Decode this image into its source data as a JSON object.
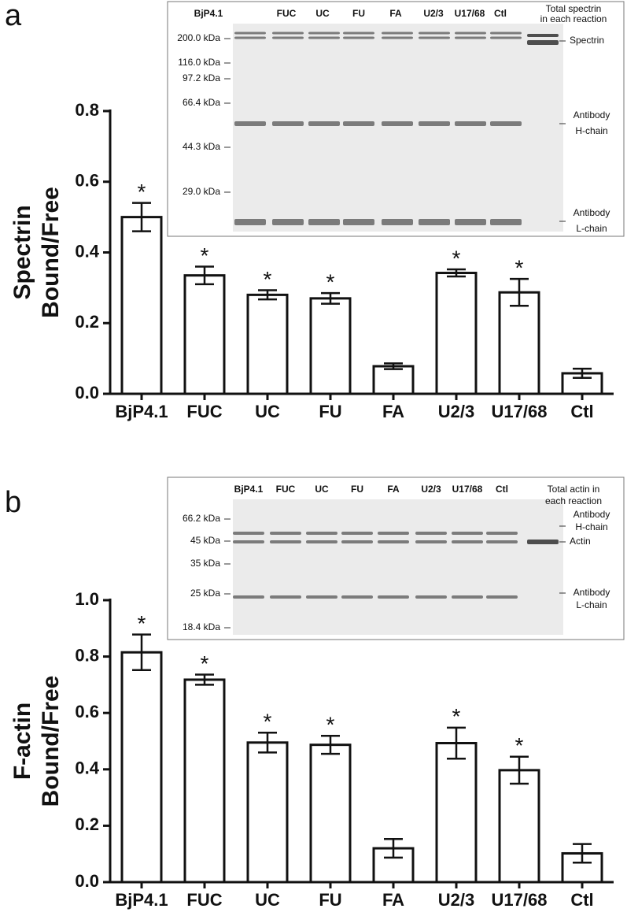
{
  "chart_data": [
    {
      "type": "bar",
      "panel": "a",
      "ylabel": [
        "Spectrin",
        "Bound/Free"
      ],
      "categories": [
        "BjP4.1",
        "FUC",
        "UC",
        "FU",
        "FA",
        "U2/3",
        "U17/68",
        "Ctl"
      ],
      "values": [
        0.5,
        0.335,
        0.28,
        0.27,
        0.078,
        0.342,
        0.287,
        0.058
      ],
      "errors": [
        0.04,
        0.025,
        0.013,
        0.015,
        0.008,
        0.01,
        0.038,
        0.013
      ],
      "significance": [
        "*",
        "*",
        "*",
        "*",
        null,
        "*",
        "*",
        null
      ],
      "color": "#ffffff",
      "ylim": [
        0,
        0.8
      ],
      "yticks": [
        {
          "value": 0,
          "label": "0.0"
        },
        0.2,
        0.4,
        0.6,
        0.8
      ],
      "inset": {
        "lanes": [
          "BjP4.1",
          "FUC",
          "UC",
          "FU",
          "FA",
          "U2/3",
          "U17/68",
          "Ctl"
        ],
        "total_label": [
          "Total spectrin",
          "in each reaction"
        ],
        "markers": [
          "200.0 kDa",
          "116.0 kDa",
          "97.2 kDa",
          "66.4 kDa",
          "44.3 kDa",
          "29.0 kDa"
        ],
        "band_labels": [
          [
            "Spectrin"
          ],
          [
            "Antibody",
            "H-chain"
          ],
          [
            "Antibody",
            "L-chain"
          ]
        ]
      }
    },
    {
      "type": "bar",
      "panel": "b",
      "ylabel": [
        "F-actin",
        "Bound/Free"
      ],
      "categories": [
        "BjP4.1",
        "FUC",
        "UC",
        "FU",
        "FA",
        "U2/3",
        "U17/68",
        "Ctl"
      ],
      "values": [
        0.815,
        0.718,
        0.495,
        0.487,
        0.12,
        0.493,
        0.397,
        0.102
      ],
      "errors": [
        0.063,
        0.018,
        0.035,
        0.032,
        0.033,
        0.055,
        0.048,
        0.033
      ],
      "significance": [
        "*",
        "*",
        "*",
        "*",
        null,
        "*",
        "*",
        null
      ],
      "color": "#ffffff",
      "ylim": [
        0,
        1
      ],
      "yticks": [
        {
          "value": 0,
          "label": "0.0"
        },
        0.2,
        0.4,
        0.6,
        0.8,
        {
          "value": 1,
          "label": "1.0"
        }
      ],
      "inset": {
        "lanes": [
          "BjP4.1",
          "FUC",
          "UC",
          "FU",
          "FA",
          "U2/3",
          "U17/68",
          "Ctl"
        ],
        "total_label": [
          "Total actin in",
          "each reaction"
        ],
        "markers": [
          "66.2 kDa",
          "45 kDa",
          "35 kDa",
          "25 kDa",
          "18.4 kDa"
        ],
        "band_labels": [
          [
            "Antibody",
            "H-chain"
          ],
          [
            "Actin"
          ],
          [
            "Antibody",
            "L-chain"
          ]
        ]
      }
    }
  ]
}
